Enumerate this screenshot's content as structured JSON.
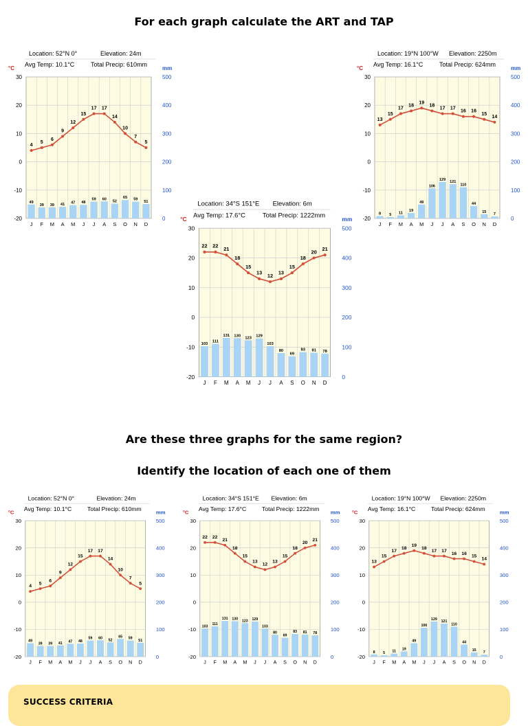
{
  "headings": {
    "q1": "For each graph calculate the ART and TAP",
    "q2": "Are these three graphs for the same region?",
    "q3": "Identify the location of each one of them"
  },
  "success_banner": {
    "title": "SUCCESS CRITERIA"
  },
  "colors": {
    "plot_bg": "#fdfbe2",
    "grid": "#c9c9c9",
    "bar": "#a9d4f5",
    "temp_line": "#d34f3a",
    "temp_axis": "#cc2222",
    "precip_axis": "#2255cc"
  },
  "chart_data": [
    {
      "id": "uk",
      "type": "bar+line",
      "location": "Location: 52°N 0°",
      "elevation": "Elevation: 24m",
      "avg_temp": "Avg Temp: 10.1°C",
      "total_precip": "Total Precip: 610mm",
      "temp_unit": "°C",
      "precip_unit": "mm",
      "categories": [
        "J",
        "F",
        "M",
        "A",
        "M",
        "J",
        "J",
        "A",
        "S",
        "O",
        "N",
        "D"
      ],
      "temperature": [
        4,
        5,
        6,
        9,
        12,
        15,
        17,
        17,
        14,
        10,
        7,
        5
      ],
      "precipitation": [
        49,
        39,
        39,
        41,
        47,
        48,
        59,
        60,
        52,
        65,
        59,
        51
      ],
      "temp_ylim": [
        -20,
        30
      ],
      "temp_ticks": [
        30,
        20,
        10,
        0,
        -10,
        -20
      ],
      "precip_ylim": [
        0,
        500
      ],
      "precip_ticks": [
        500,
        400,
        300,
        200,
        100,
        0
      ]
    },
    {
      "id": "mexico",
      "type": "bar+line",
      "location": "Location: 19°N 100°W",
      "elevation": "Elevation: 2250m",
      "avg_temp": "Avg Temp: 16.1°C",
      "total_precip": "Total Precip: 624mm",
      "temp_unit": "°C",
      "precip_unit": "mm",
      "categories": [
        "J",
        "F",
        "M",
        "A",
        "M",
        "J",
        "J",
        "A",
        "S",
        "O",
        "N",
        "D"
      ],
      "temperature": [
        13,
        15,
        17,
        18,
        19,
        18,
        17,
        17,
        16,
        16,
        15,
        14
      ],
      "precipitation": [
        8,
        5,
        11,
        19,
        49,
        106,
        129,
        121,
        110,
        44,
        15,
        7
      ],
      "temp_ylim": [
        -20,
        30
      ],
      "temp_ticks": [
        30,
        20,
        10,
        0,
        -10,
        -20
      ],
      "precip_ylim": [
        0,
        500
      ],
      "precip_ticks": [
        500,
        400,
        300,
        200,
        100,
        0
      ]
    },
    {
      "id": "sydney",
      "type": "bar+line",
      "location": "Location: 34°S 151°E",
      "elevation": "Elevation: 6m",
      "avg_temp": "Avg Temp: 17.6°C",
      "total_precip": "Total Precip: 1222mm",
      "temp_unit": "°C",
      "precip_unit": "mm",
      "categories": [
        "J",
        "F",
        "M",
        "A",
        "M",
        "J",
        "J",
        "A",
        "S",
        "O",
        "N",
        "D"
      ],
      "temperature": [
        22,
        22,
        21,
        18,
        15,
        13,
        12,
        13,
        15,
        18,
        20,
        21
      ],
      "precipitation": [
        103,
        111,
        131,
        130,
        123,
        129,
        103,
        80,
        69,
        83,
        81,
        78
      ],
      "temp_ylim": [
        -20,
        30
      ],
      "temp_ticks": [
        30,
        20,
        10,
        0,
        -10,
        -20
      ],
      "precip_ylim": [
        0,
        500
      ],
      "precip_ticks": [
        500,
        400,
        300,
        200,
        100,
        0
      ]
    }
  ]
}
